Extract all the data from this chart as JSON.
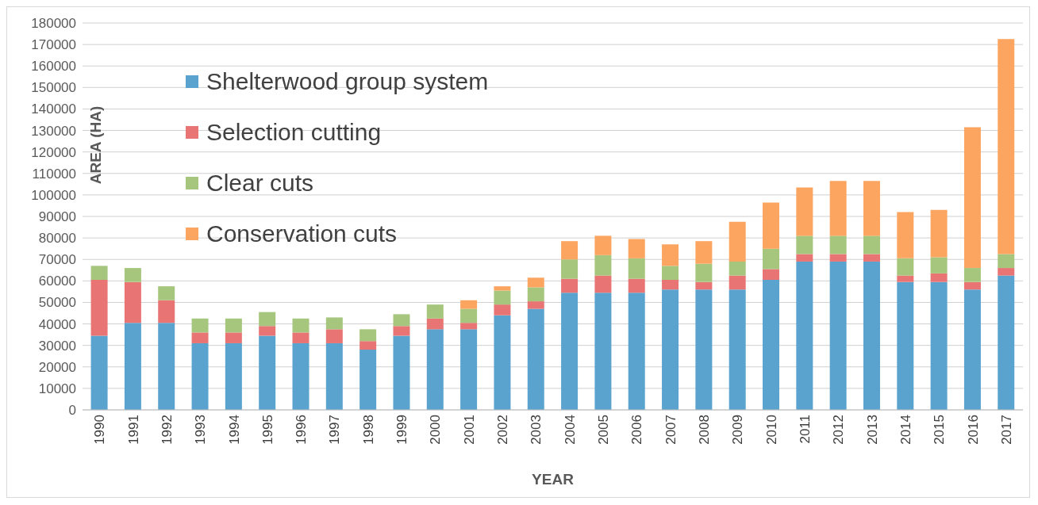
{
  "chart_data": {
    "type": "bar",
    "stacked": true,
    "xlabel": "YEAR",
    "ylabel": "AREA  (HA)",
    "categories": [
      "1990",
      "1991",
      "1992",
      "1993",
      "1994",
      "1995",
      "1996",
      "1997",
      "1998",
      "1999",
      "2000",
      "2001",
      "2002",
      "2003",
      "2004",
      "2005",
      "2006",
      "2007",
      "2008",
      "2009",
      "2010",
      "2011",
      "2012",
      "2013",
      "2014",
      "2015",
      "2016",
      "2017"
    ],
    "series": [
      {
        "name": "Shelterwood group system",
        "color": "#5ba3cf",
        "values": [
          34500,
          40500,
          40500,
          31000,
          31000,
          34500,
          31000,
          31000,
          28000,
          34500,
          37500,
          37500,
          44000,
          47000,
          54500,
          54500,
          54500,
          56000,
          56000,
          56000,
          60500,
          69000,
          69000,
          69000,
          59500,
          59500,
          56000,
          62500
        ]
      },
      {
        "name": "Selection cutting",
        "color": "#e87474",
        "values": [
          26000,
          19000,
          10500,
          5000,
          5000,
          4500,
          5000,
          6500,
          4000,
          4500,
          5000,
          3000,
          5000,
          3500,
          6500,
          8000,
          6500,
          4500,
          3500,
          6500,
          5000,
          3500,
          3500,
          3500,
          3000,
          4000,
          3500,
          3500
        ]
      },
      {
        "name": "Clear cuts",
        "color": "#a5c67c",
        "values": [
          6500,
          6500,
          6500,
          6500,
          6500,
          6500,
          6500,
          5500,
          5500,
          5500,
          6500,
          6500,
          6500,
          6500,
          9000,
          9500,
          9500,
          6500,
          8500,
          6500,
          9500,
          8500,
          8500,
          8500,
          8000,
          7500,
          6500,
          6500
        ]
      },
      {
        "name": "Conservation cuts",
        "color": "#fca561",
        "values": [
          0,
          0,
          0,
          0,
          0,
          0,
          0,
          0,
          0,
          0,
          0,
          4000,
          2000,
          4500,
          8500,
          9000,
          9000,
          10000,
          10500,
          18500,
          21500,
          22500,
          25500,
          25500,
          21500,
          22000,
          65500,
          100000
        ]
      }
    ],
    "ylim": [
      0,
      180000
    ],
    "yticks": [
      0,
      10000,
      20000,
      30000,
      40000,
      50000,
      60000,
      70000,
      80000,
      90000,
      100000,
      110000,
      120000,
      130000,
      140000,
      150000,
      160000,
      170000,
      180000
    ],
    "grid": "y",
    "legend": "top left"
  }
}
